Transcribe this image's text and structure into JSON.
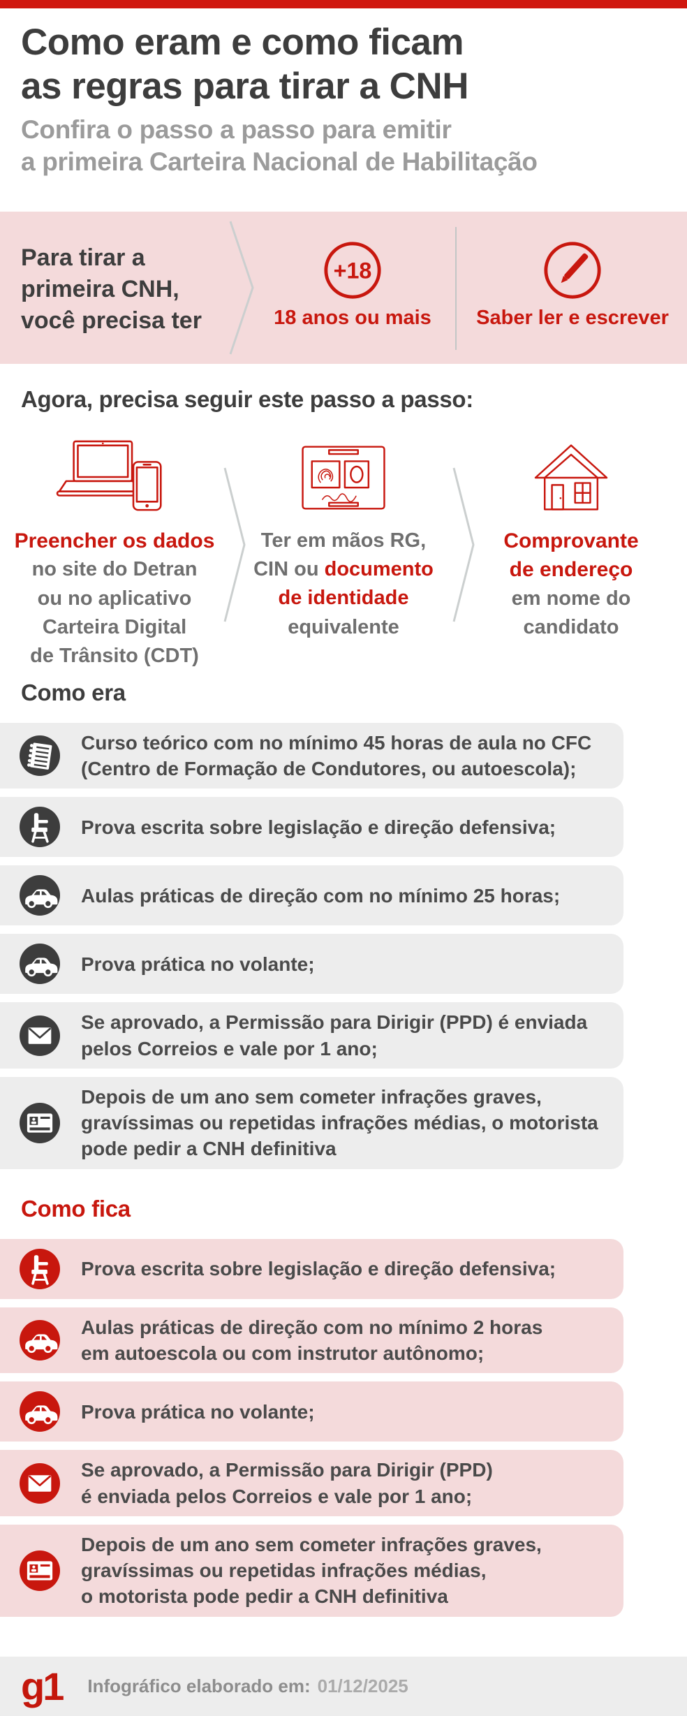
{
  "colors": {
    "accent_red": "#c8170e",
    "top_bar": "#d0170f",
    "pink_band": "#f4dadb",
    "gray_row": "#ededed",
    "dark_circle": "#3d3d3d",
    "title_dark": "#3d3d3d",
    "subtitle_gray": "#9b9b9b"
  },
  "header": {
    "title": "Como eram e como ficam\nas regras para tirar a CNH",
    "subtitle": "Confira o passo a passo para emitir\na primeira Carteira Nacional de Habilitação"
  },
  "requirements": {
    "intro": "Para tirar a\nprimeira CNH,\nvocê precisa ter",
    "age_badge": "+18",
    "age_label": "18 anos ou mais",
    "literacy_label": "Saber ler e escrever"
  },
  "steps": {
    "heading": "Agora, precisa seguir este passo a passo:",
    "col1": {
      "title": "Preencher os dados",
      "sub": "no site do Detran\nou no aplicativo\nCarteira Digital\nde Trânsito (CDT)"
    },
    "col2": {
      "l1": "Ter em mãos RG,",
      "l2a": "CIN ou ",
      "l2b": "documento",
      "l3": "de identidade",
      "l4": "equivalente"
    },
    "col3": {
      "title": "Comprovante\nde endereço",
      "sub": "em nome do\ncandidato"
    }
  },
  "before": {
    "heading": "Como era",
    "row_bg": "#ededed",
    "circle_color": "#3d3d3d",
    "items": [
      {
        "icon": "notepad-icon",
        "text": "Curso teórico com no mínimo 45 horas de aula no CFC\n(Centro de Formação de Condutores, ou autoescola);"
      },
      {
        "icon": "chair-icon",
        "text": "Prova escrita sobre legislação e direção defensiva;"
      },
      {
        "icon": "car-icon",
        "text": "Aulas práticas de direção com no mínimo 25 horas;"
      },
      {
        "icon": "car-icon",
        "text": "Prova prática no volante;"
      },
      {
        "icon": "envelope-icon",
        "text": "Se aprovado, a Permissão para Dirigir (PPD) é enviada\npelos Correios e vale por 1 ano;"
      },
      {
        "icon": "id-card-icon",
        "text": "Depois de um ano sem cometer infrações graves,\ngravíssimas ou repetidas infrações médias, o motorista\npode pedir a CNH definitiva"
      }
    ]
  },
  "after": {
    "heading": "Como fica",
    "row_bg": "#f4dadb",
    "circle_color": "#c8170e",
    "items": [
      {
        "icon": "chair-icon",
        "text": "Prova escrita sobre legislação e direção defensiva;"
      },
      {
        "icon": "car-icon",
        "text": "Aulas práticas de direção com no mínimo 2 horas\nem autoescola ou com instrutor autônomo;"
      },
      {
        "icon": "car-icon",
        "text": "Prova prática no volante;"
      },
      {
        "icon": "envelope-icon",
        "text": "Se aprovado, a Permissão para Dirigir (PPD)\né enviada pelos Correios e vale por 1 ano;"
      },
      {
        "icon": "id-card-icon",
        "text": "Depois de um ano sem cometer infrações graves,\ngravíssimas ou repetidas infrações médias,\no motorista pode pedir a CNH definitiva"
      }
    ]
  },
  "footer": {
    "logo": "g1",
    "label": "Infográfico elaborado em:",
    "date": "01/12/2025"
  }
}
